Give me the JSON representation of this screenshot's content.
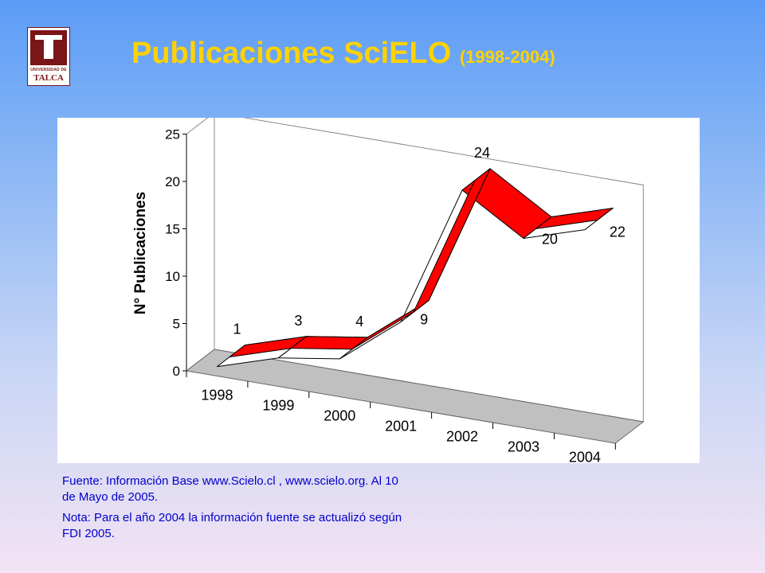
{
  "logo": {
    "line1": "UNIVERSIDAD DE",
    "line2": "TALCA",
    "color": "#7a1518"
  },
  "title": {
    "main": "Publicaciones SciELO",
    "years": "(1998-2004)",
    "color": "#ffd200"
  },
  "chart_data": {
    "type": "line",
    "style": "3d-ribbon",
    "ylabel": "N° Publicaciones",
    "xlabel": "",
    "categories": [
      "1998",
      "1999",
      "2000",
      "2001",
      "2002",
      "2003",
      "2004"
    ],
    "series": [
      {
        "values": [
          1,
          3,
          4,
          9,
          24,
          20,
          22
        ],
        "color": "#ff0000"
      }
    ],
    "data_labels": [
      "1",
      "3",
      "4",
      "9",
      "24",
      "20",
      "22"
    ],
    "ylim": [
      0,
      25
    ],
    "yticks": [
      0,
      5,
      10,
      15,
      20,
      25
    ],
    "grid": false,
    "legend": "none"
  },
  "notes": {
    "source": "Fuente: Información Base www.Scielo.cl , www.scielo.org. Al 10 de Mayo de 2005.",
    "note": "Nota: Para el año 2004 la información fuente se actualizó según FDI 2005."
  }
}
